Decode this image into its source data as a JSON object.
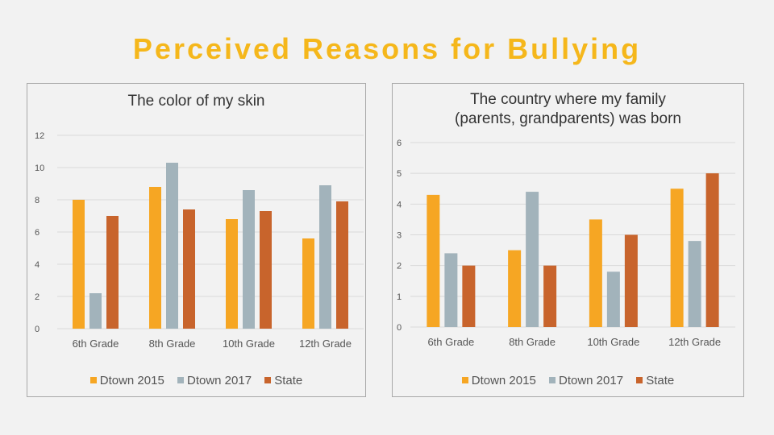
{
  "page": {
    "title": "Perceived Reasons for Bullying"
  },
  "colors": {
    "title": "#f5b71b",
    "series": [
      "#f6a623",
      "#a2b3bb",
      "#c8642c"
    ],
    "grid": "#d9d9d9",
    "text": "#555555"
  },
  "chart_data": [
    {
      "type": "bar",
      "title": "The color of my skin",
      "categories": [
        "6th Grade",
        "8th Grade",
        "10th Grade",
        "12th Grade"
      ],
      "series": [
        {
          "name": "Dtown 2015",
          "values": [
            8.0,
            8.8,
            6.8,
            5.6
          ]
        },
        {
          "name": "Dtown 2017",
          "values": [
            2.2,
            10.3,
            8.6,
            8.9
          ]
        },
        {
          "name": "State",
          "values": [
            7.0,
            7.4,
            7.3,
            7.9
          ]
        }
      ],
      "yticks": [
        0,
        2,
        4,
        6,
        8,
        10,
        12
      ],
      "ylim": [
        0,
        12
      ],
      "xlabel": "",
      "ylabel": "",
      "legend": "bottom"
    },
    {
      "type": "bar",
      "title": "The country where my family",
      "title_line2": "(parents, grandparents) was born",
      "categories": [
        "6th Grade",
        "8th Grade",
        "10th Grade",
        "12th Grade"
      ],
      "series": [
        {
          "name": "Dtown 2015",
          "values": [
            4.3,
            2.5,
            3.5,
            4.5
          ]
        },
        {
          "name": "Dtown 2017",
          "values": [
            2.4,
            4.4,
            1.8,
            2.8
          ]
        },
        {
          "name": "State",
          "values": [
            2.0,
            2.0,
            3.0,
            5.0
          ]
        }
      ],
      "yticks": [
        0,
        1,
        2,
        3,
        4,
        5,
        6
      ],
      "ylim": [
        0,
        6
      ],
      "xlabel": "",
      "ylabel": "",
      "legend": "bottom"
    }
  ]
}
